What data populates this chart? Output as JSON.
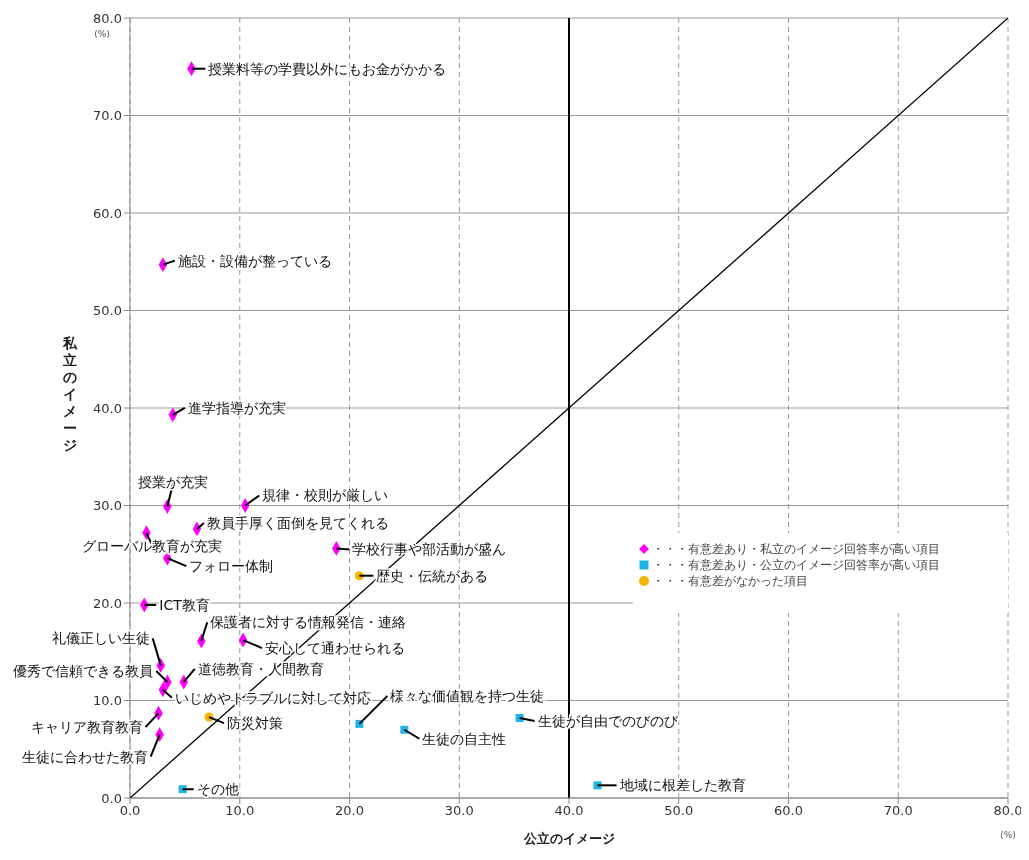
{
  "chart_data": {
    "type": "scatter",
    "xlabel": "公立のイメージ",
    "ylabel": "私立のイメージ",
    "xlim": [
      0,
      80
    ],
    "ylim": [
      0,
      80
    ],
    "xticks": [
      {
        "value": 0,
        "label": "0.0"
      },
      {
        "value": 10,
        "label": "10.0"
      },
      {
        "value": 20,
        "label": "20.0"
      },
      {
        "value": 30,
        "label": "30.0"
      },
      {
        "value": 40,
        "label": "40.0"
      },
      {
        "value": 50,
        "label": "50.0"
      },
      {
        "value": 60,
        "label": "60.0"
      },
      {
        "value": 70,
        "label": "70.0"
      },
      {
        "value": 80,
        "label": "80.0"
      }
    ],
    "yticks": [
      {
        "value": 0,
        "label": "0.0"
      },
      {
        "value": 10,
        "label": "10.0"
      },
      {
        "value": 20,
        "label": "20.0"
      },
      {
        "value": 30,
        "label": "30.0"
      },
      {
        "value": 40,
        "label": "40.0"
      },
      {
        "value": 50,
        "label": "50.0"
      },
      {
        "value": 60,
        "label": "60.0"
      },
      {
        "value": 70,
        "label": "70.0"
      },
      {
        "value": 80,
        "label": "80.0"
      }
    ],
    "grid": true,
    "legend": "right",
    "ref_lines": [
      {
        "axis": "x",
        "value": 40,
        "color": "#000000"
      }
    ],
    "series": [
      {
        "name": "・・・有意差あり・私立のイメージ回答率が高い項目",
        "color": "#ff00ff",
        "marker": "diamond",
        "x": [
          5.6,
          3.0,
          3.9,
          3.4,
          10.5,
          6.1,
          1.5,
          3.4,
          18.8,
          1.3,
          6.5,
          10.3,
          2.8,
          3.4,
          4.9,
          3.0,
          2.6,
          2.7
        ],
        "values": [
          74.8,
          54.7,
          39.3,
          29.9,
          30.0,
          27.6,
          27.2,
          24.6,
          25.6,
          19.8,
          16.1,
          16.2,
          13.6,
          11.9,
          11.9,
          11.1,
          8.7,
          6.5
        ]
      },
      {
        "name": "・・・有意差あり・公立のイメージ回答率が高い項目",
        "color": "#1fb4e6",
        "marker": "square",
        "x": [
          4.8,
          20.9,
          25.0,
          35.5,
          42.6
        ],
        "values": [
          0.9,
          7.6,
          7.0,
          8.2,
          1.3
        ]
      },
      {
        "name": "・・・有意差がなかった項目",
        "color": "#f5b400",
        "marker": "circle",
        "x": [
          20.9,
          7.2
        ],
        "values": [
          22.8,
          8.3
        ]
      },
      {
        "type": "line",
        "color": "#000000",
        "marker": "none",
        "x": [
          0,
          80
        ],
        "values": [
          0,
          80
        ]
      }
    ],
    "annotations": [
      "(%)",
      "(%)",
      {
        "text": "授業料等の学費以外にもお金がかかる",
        "x": 5.6,
        "y": 74.8
      },
      {
        "text": "施設・設備が整っている",
        "x": 3.0,
        "y": 54.7
      },
      {
        "text": "進学指導が充実",
        "x": 3.9,
        "y": 39.3
      },
      {
        "text": "授業が充実",
        "x": 3.4,
        "y": 29.9
      },
      {
        "text": "規律・校則が厳しい",
        "x": 10.5,
        "y": 30.0
      },
      {
        "text": "教員手厚く面倒を見てくれる",
        "x": 6.1,
        "y": 27.6
      },
      {
        "text": "グローバル教育が充実",
        "x": 1.5,
        "y": 27.2
      },
      {
        "text": "フォロー体制",
        "x": 3.4,
        "y": 24.6
      },
      {
        "text": "学校行事や部活動が盛ん",
        "x": 18.8,
        "y": 25.6
      },
      {
        "text": "ICT教育",
        "x": 1.3,
        "y": 19.8
      },
      {
        "text": "保護者に対する情報発信・連絡",
        "x": 6.5,
        "y": 16.1
      },
      {
        "text": "安心して通わせられる",
        "x": 10.3,
        "y": 16.2
      },
      {
        "text": "礼儀正しい生徒",
        "x": 2.8,
        "y": 13.6
      },
      {
        "text": "優秀で信頼できる教員",
        "x": 3.4,
        "y": 11.9
      },
      {
        "text": "道徳教育・人間教育",
        "x": 4.9,
        "y": 11.9
      },
      {
        "text": "いじめやトラブルに対して対応",
        "x": 3.0,
        "y": 11.1
      },
      {
        "text": "キャリア教育教育",
        "x": 2.6,
        "y": 8.7
      },
      {
        "text": "生徒に合わせた教育",
        "x": 2.7,
        "y": 6.5
      },
      {
        "text": "歴史・伝統がある",
        "x": 20.9,
        "y": 22.8
      },
      {
        "text": "防災対策",
        "x": 7.2,
        "y": 8.3
      },
      {
        "text": "その他",
        "x": 4.8,
        "y": 0.9
      },
      {
        "text": "様々な価値観を持つ生徒",
        "x": 20.9,
        "y": 7.6
      },
      {
        "text": "生徒の自主性",
        "x": 25.0,
        "y": 7.0
      },
      {
        "text": "生徒が自由でのびのび",
        "x": 35.5,
        "y": 8.2
      },
      {
        "text": "地域に根差した教育",
        "x": 42.6,
        "y": 1.3
      }
    ]
  }
}
